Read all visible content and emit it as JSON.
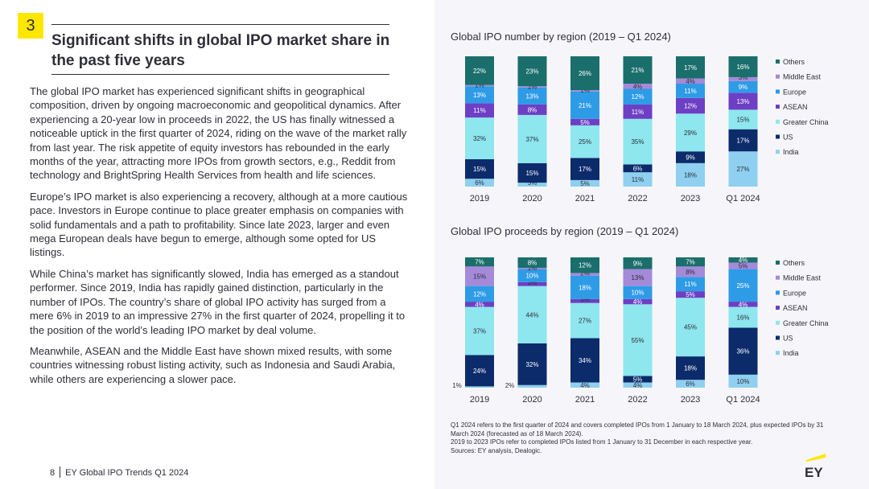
{
  "section_number": "3",
  "title": "Significant shifts in global IPO market share in the past five years",
  "paragraphs": [
    "The global IPO market has experienced significant shifts in geographical composition, driven by ongoing macroeconomic and geopolitical dynamics. After experiencing a 20-year low in proceeds in 2022, the US has finally witnessed a noticeable uptick in the first quarter of 2024, riding on the wave of the market rally from last year. The risk appetite of equity investors has rebounded in the early months of the year, attracting more IPOs from growth sectors, e.g., Reddit from technology and BrightSpring Health Services from health and life sciences.",
    "Europe’s IPO market is also experiencing a recovery, although at a more cautious pace. Investors in Europe continue to place greater emphasis on companies with solid fundamentals and a path to profitability. Since late 2023, larger and even mega European deals have begun to emerge, although some opted for US listings.",
    "While China’s market has significantly slowed, India has emerged as a standout performer. Since 2019, India has rapidly gained distinction, particularly in the number of IPOs. The country’s share of global IPO activity has surged from a mere 6% in 2019 to an impressive 27% in the first quarter of 2024, propelling it to the position of the world’s leading IPO market by deal volume.",
    "Meanwhile, ASEAN and the Middle East have shown mixed results, with some countries witnessing robust listing activity, such as Indonesia and Saudi Arabia, while others are experiencing a slower pace."
  ],
  "footer": {
    "page": "8",
    "text": "EY Global IPO Trends Q1 2024"
  },
  "notes": [
    "Q1 2024 refers to the first quarter of 2024 and covers completed IPOs from 1 January to 18 March 2024, plus expected IPOs by 31 March 2024 (forecasted as of 18 March 2024).",
    "2019 to 2023 IPOs refer to completed IPOs listed from 1 January to 31 December in each respective year.",
    "Sources: EY analysis, Dealogic."
  ],
  "logo_text": "EY",
  "colors": {
    "Others": "#1a6e6b",
    "Middle East": "#a48ad9",
    "Europe": "#2e9be6",
    "ASEAN": "#6d3fc4",
    "Greater China": "#8ee6ee",
    "US": "#0c2b6b",
    "India": "#8fd0f0"
  },
  "chart_data": [
    {
      "type": "bar",
      "stacked": true,
      "normalized": true,
      "title": "Global IPO number by region (2019 – Q1 2024)",
      "categories": [
        "2019",
        "2020",
        "2021",
        "2022",
        "2023",
        "Q1 2024"
      ],
      "ylim": [
        0,
        100
      ],
      "legend_position": "right",
      "series": [
        {
          "name": "India",
          "values": [
            6,
            3,
            5,
            11,
            18,
            27
          ]
        },
        {
          "name": "US",
          "values": [
            15,
            15,
            17,
            6,
            9,
            17
          ]
        },
        {
          "name": "Greater China",
          "values": [
            32,
            37,
            25,
            35,
            29,
            15
          ]
        },
        {
          "name": "ASEAN",
          "values": [
            11,
            8,
            5,
            11,
            12,
            13
          ]
        },
        {
          "name": "Europe",
          "values": [
            13,
            13,
            21,
            12,
            11,
            9
          ]
        },
        {
          "name": "Middle East",
          "values": [
            1,
            1,
            1,
            4,
            4,
            3
          ]
        },
        {
          "name": "Others",
          "values": [
            22,
            23,
            26,
            21,
            17,
            16
          ]
        }
      ]
    },
    {
      "type": "bar",
      "stacked": true,
      "normalized": true,
      "title": "Global IPO proceeds by region (2019 – Q1 2024)",
      "categories": [
        "2019",
        "2020",
        "2021",
        "2022",
        "2023",
        "Q1 2024"
      ],
      "ylim": [
        0,
        100
      ],
      "legend_position": "right",
      "series": [
        {
          "name": "India",
          "values": [
            1,
            2,
            4,
            4,
            6,
            10
          ]
        },
        {
          "name": "US",
          "values": [
            24,
            32,
            34,
            5,
            18,
            36
          ]
        },
        {
          "name": "Greater China",
          "values": [
            37,
            44,
            27,
            55,
            45,
            16
          ]
        },
        {
          "name": "ASEAN",
          "values": [
            4,
            3,
            3,
            4,
            5,
            4
          ]
        },
        {
          "name": "Europe",
          "values": [
            12,
            10,
            18,
            10,
            11,
            25
          ]
        },
        {
          "name": "Middle East",
          "values": [
            15,
            1,
            2,
            13,
            8,
            5
          ]
        },
        {
          "name": "Others",
          "values": [
            7,
            8,
            12,
            9,
            7,
            4
          ]
        }
      ]
    }
  ]
}
